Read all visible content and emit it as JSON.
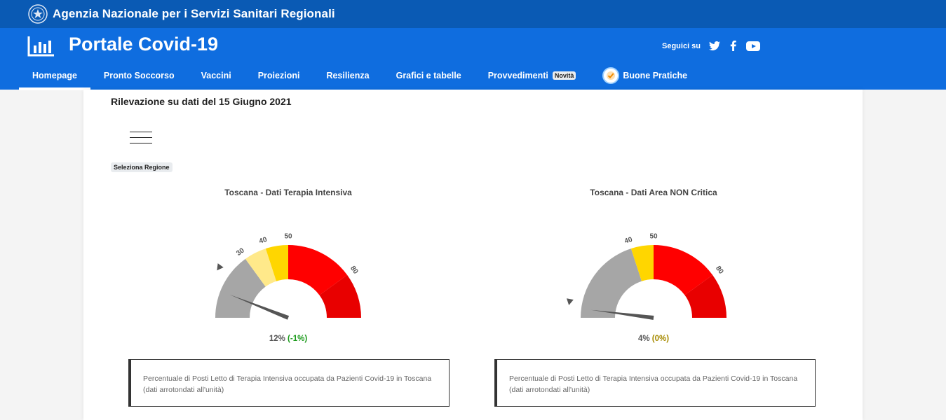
{
  "topbar": {
    "agency": "Agenzia Nazionale per i Servizi Sanitari Regionali"
  },
  "header": {
    "portal_title": "Portale Covid-19",
    "follow_label": "Seguici su",
    "social": [
      "twitter-icon",
      "facebook-icon",
      "youtube-icon"
    ]
  },
  "nav": {
    "items": [
      {
        "label": "Homepage",
        "active": true
      },
      {
        "label": "Pronto Soccorso"
      },
      {
        "label": "Vaccini"
      },
      {
        "label": "Proiezioni"
      },
      {
        "label": "Resilienza"
      },
      {
        "label": "Grafici e tabelle"
      },
      {
        "label": "Provvedimenti",
        "badge": "Novità"
      },
      {
        "label": "Buone Pratiche",
        "icon": "check-badge-icon"
      }
    ]
  },
  "main": {
    "date_title": "Rilevazione su dati del 15 Giugno 2021",
    "region_label": "Seleziona Regione",
    "gauges": [
      {
        "title": "Toscana - Dati Terapia Intensiva",
        "value_text": "12%",
        "delta_text": "(-1%)",
        "value": 12,
        "ticks": [
          "30",
          "40",
          "50",
          "80"
        ],
        "description": "Percentuale di Posti Letto di Terapia Intensiva occupata da Pazienti Covid-19 in Toscana (dati arrotondati all'unità)"
      },
      {
        "title": "Toscana - Dati Area NON Critica",
        "value_text": "4%",
        "delta_text": "(0%)",
        "value": 4,
        "ticks": [
          "40",
          "50",
          "80"
        ],
        "description": "Percentuale di Posti Letto di Terapia Intensiva occupata da Pazienti Covid-19 in Toscana (dati arrotondati all'unità)"
      }
    ]
  },
  "colors": {
    "topbar": "#0a5ab4",
    "header": "#0f6ddf",
    "band_gray": "#a6a6a6",
    "band_light_yellow": "#ffe98a",
    "band_yellow": "#ffd600",
    "band_red": "#ff0000",
    "band_dark_red": "#e80000"
  }
}
